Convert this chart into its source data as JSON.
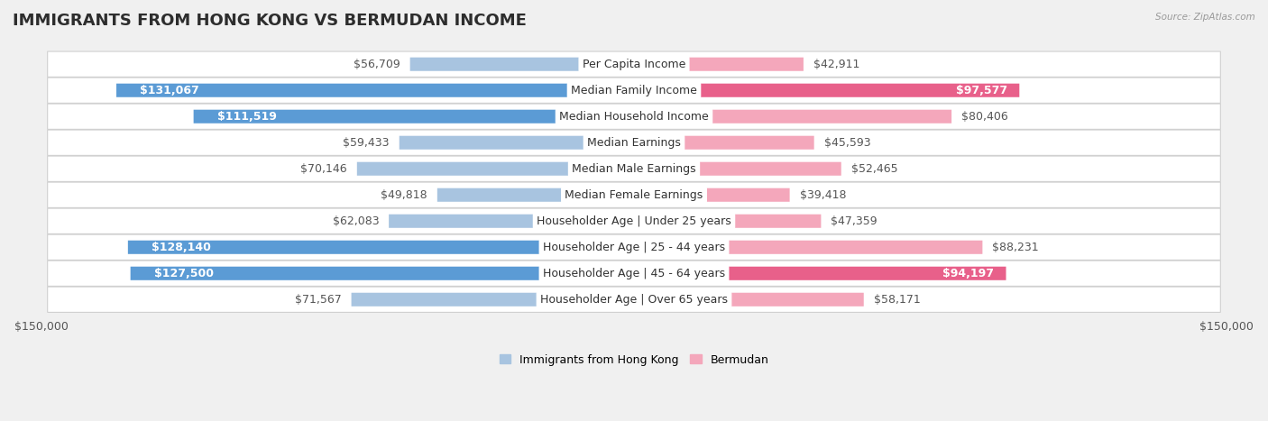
{
  "title": "IMMIGRANTS FROM HONG KONG VS BERMUDAN INCOME",
  "source": "Source: ZipAtlas.com",
  "categories": [
    "Per Capita Income",
    "Median Family Income",
    "Median Household Income",
    "Median Earnings",
    "Median Male Earnings",
    "Median Female Earnings",
    "Householder Age | Under 25 years",
    "Householder Age | 25 - 44 years",
    "Householder Age | 45 - 64 years",
    "Householder Age | Over 65 years"
  ],
  "hk_values": [
    56709,
    131067,
    111519,
    59433,
    70146,
    49818,
    62083,
    128140,
    127500,
    71567
  ],
  "bm_values": [
    42911,
    97577,
    80406,
    45593,
    52465,
    39418,
    47359,
    88231,
    94197,
    58171
  ],
  "hk_labels": [
    "$56,709",
    "$131,067",
    "$111,519",
    "$59,433",
    "$70,146",
    "$49,818",
    "$62,083",
    "$128,140",
    "$127,500",
    "$71,567"
  ],
  "bm_labels": [
    "$42,911",
    "$97,577",
    "$80,406",
    "$45,593",
    "$52,465",
    "$39,418",
    "$47,359",
    "$88,231",
    "$94,197",
    "$58,171"
  ],
  "max_val": 150000,
  "hk_color_light": "#a8c4e0",
  "hk_color_dark": "#5b9bd5",
  "bm_color_light": "#f4a7bb",
  "bm_color_dark": "#e8608a",
  "threshold_hk": 100000,
  "threshold_bm": 90000,
  "bg_color": "#f0f0f0",
  "bar_bg_color": "#ffffff",
  "title_fontsize": 13,
  "label_fontsize": 9,
  "tick_fontsize": 9,
  "bar_height": 0.52,
  "legend_hk": "Immigrants from Hong Kong",
  "legend_bm": "Bermudan"
}
